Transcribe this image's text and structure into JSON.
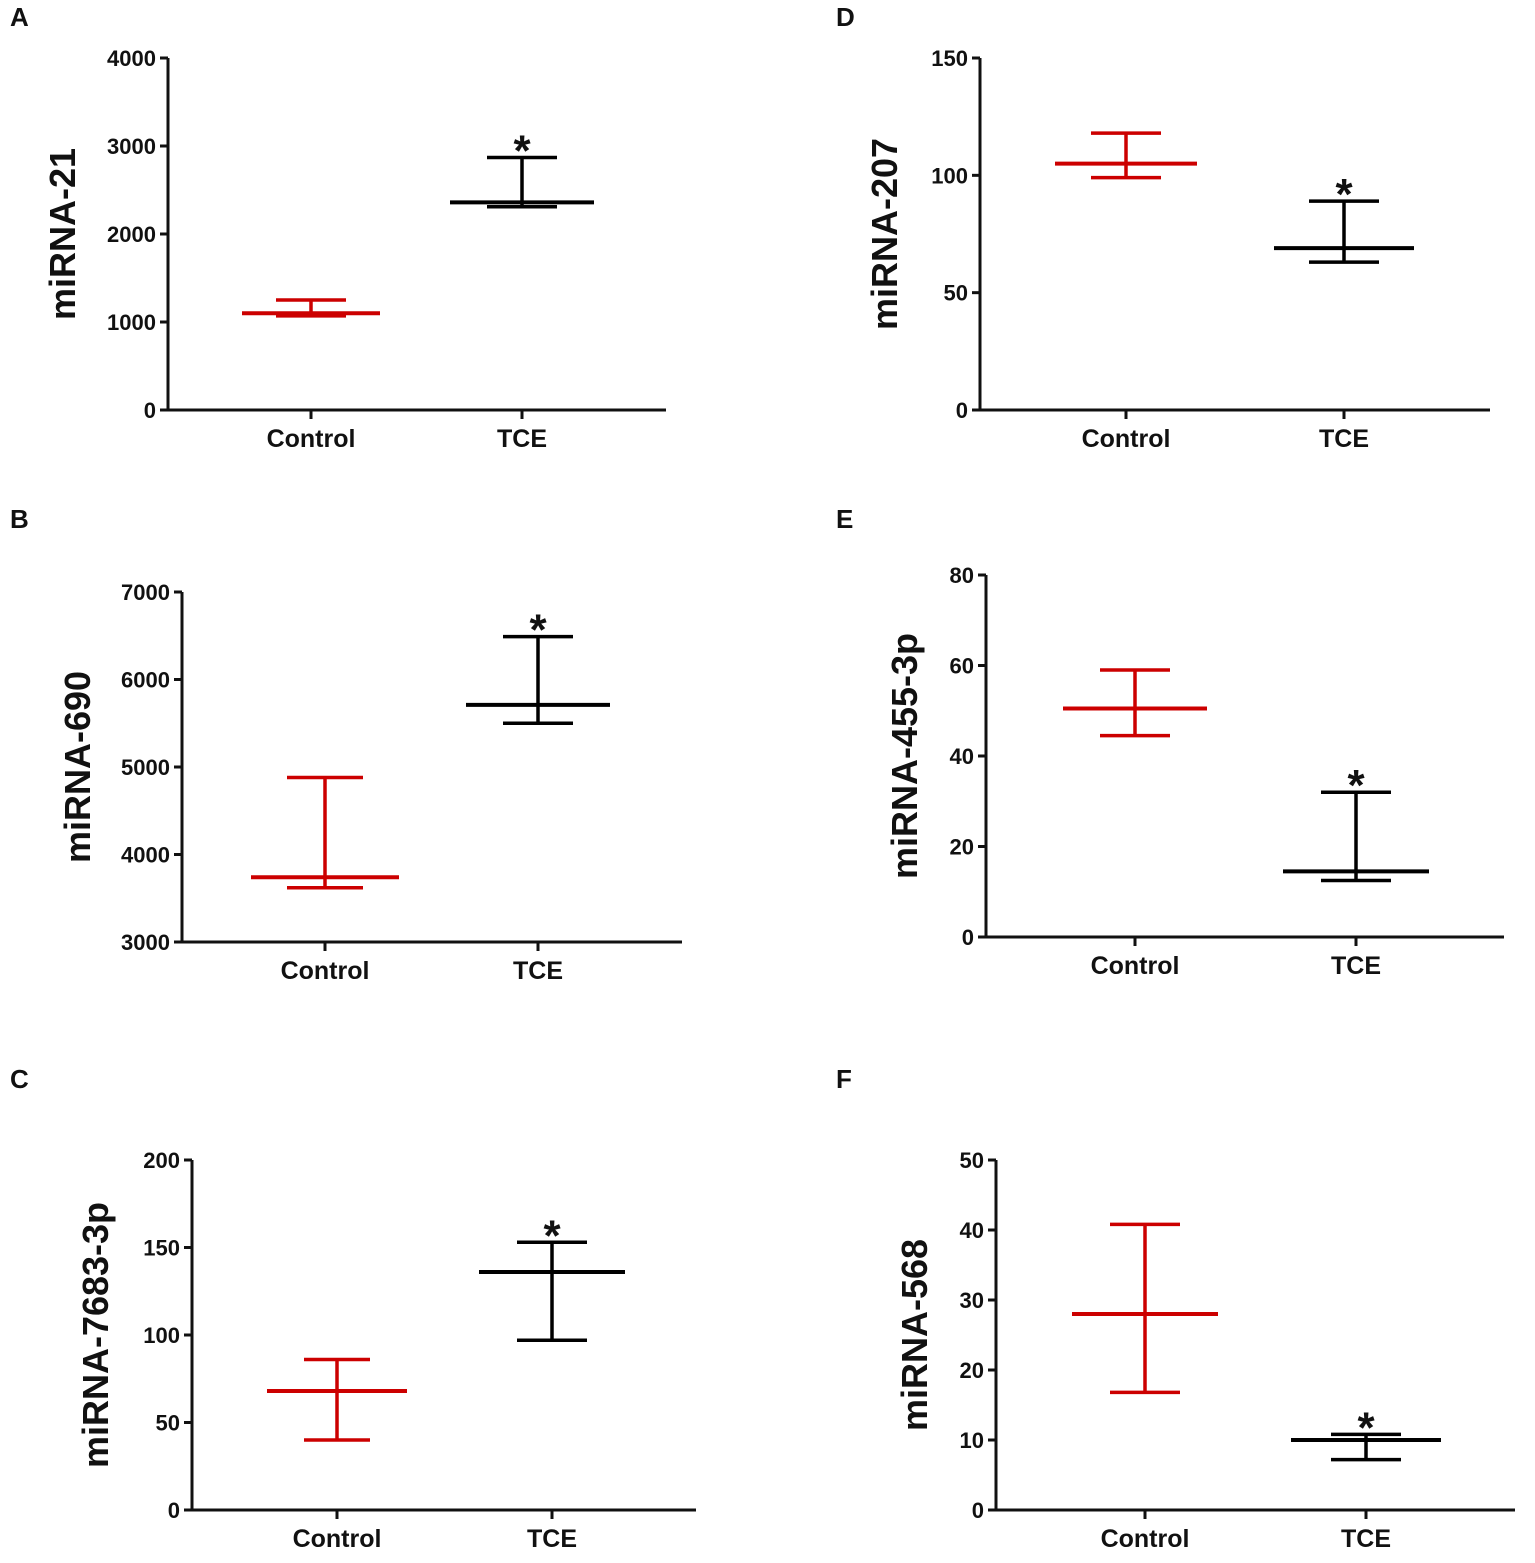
{
  "colors": {
    "control": "#cc0000",
    "tce": "#000000",
    "axis": "#111111"
  },
  "chart_data": [
    {
      "panel": "A",
      "type": "error-bar",
      "ylabel": "miRNA-21",
      "ylim": [
        0,
        4000
      ],
      "yticks": [
        "0",
        "1000",
        "2000",
        "3000",
        "4000"
      ],
      "categories": [
        "Control",
        "TCE"
      ],
      "series": [
        {
          "name": "Control",
          "mean": 1100,
          "low": 1070,
          "high": 1250
        },
        {
          "name": "TCE",
          "mean": 2360,
          "low": 2310,
          "high": 2870
        }
      ],
      "significance": {
        "TCE": "*"
      }
    },
    {
      "panel": "B",
      "type": "error-bar",
      "ylabel": "miRNA-690",
      "ylim": [
        3000,
        7000
      ],
      "yticks": [
        "3000",
        "4000",
        "5000",
        "6000",
        "7000"
      ],
      "categories": [
        "Control",
        "TCE"
      ],
      "series": [
        {
          "name": "Control",
          "mean": 3740,
          "low": 3620,
          "high": 4880
        },
        {
          "name": "TCE",
          "mean": 5710,
          "low": 5500,
          "high": 6490
        }
      ],
      "significance": {
        "TCE": "*"
      }
    },
    {
      "panel": "C",
      "type": "error-bar",
      "ylabel": "miRNA-7683-3p",
      "ylim": [
        0,
        200
      ],
      "yticks": [
        "0",
        "50",
        "100",
        "150",
        "200"
      ],
      "categories": [
        "Control",
        "TCE"
      ],
      "series": [
        {
          "name": "Control",
          "mean": 68,
          "low": 40,
          "high": 86
        },
        {
          "name": "TCE",
          "mean": 136,
          "low": 97,
          "high": 153
        }
      ],
      "significance": {
        "TCE": "*"
      }
    },
    {
      "panel": "D",
      "type": "error-bar",
      "ylabel": "miRNA-207",
      "ylim": [
        0,
        150
      ],
      "yticks": [
        "0",
        "50",
        "100",
        "150"
      ],
      "categories": [
        "Control",
        "TCE"
      ],
      "series": [
        {
          "name": "Control",
          "mean": 105,
          "low": 99,
          "high": 118
        },
        {
          "name": "TCE",
          "mean": 69,
          "low": 63,
          "high": 89
        }
      ],
      "significance": {
        "TCE": "*"
      }
    },
    {
      "panel": "E",
      "type": "error-bar",
      "ylabel": "miRNA-455-3p",
      "ylim": [
        0,
        80
      ],
      "yticks": [
        "0",
        "20",
        "40",
        "60",
        "80"
      ],
      "categories": [
        "Control",
        "TCE"
      ],
      "series": [
        {
          "name": "Control",
          "mean": 50.5,
          "low": 44.5,
          "high": 59
        },
        {
          "name": "TCE",
          "mean": 14.5,
          "low": 12.5,
          "high": 32
        }
      ],
      "significance": {
        "TCE": "*"
      }
    },
    {
      "panel": "F",
      "type": "error-bar",
      "ylabel": "miRNA-568",
      "ylim": [
        0,
        50
      ],
      "yticks": [
        "0",
        "10",
        "20",
        "30",
        "40",
        "50"
      ],
      "categories": [
        "Control",
        "TCE"
      ],
      "series": [
        {
          "name": "Control",
          "mean": 28,
          "low": 16.8,
          "high": 40.8
        },
        {
          "name": "TCE",
          "mean": 10,
          "low": 7.2,
          "high": 10.8
        }
      ],
      "significance": {
        "TCE": "*"
      }
    }
  ]
}
